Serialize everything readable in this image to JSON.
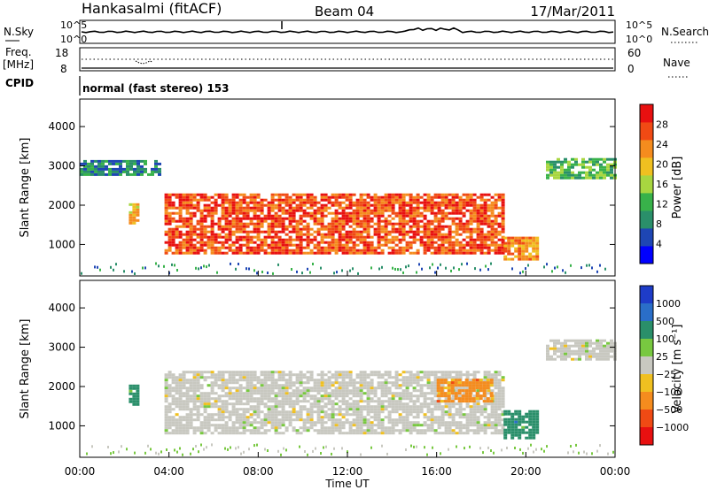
{
  "header": {
    "station": "Hankasalmi (fitACF)",
    "beam": "Beam 04",
    "date": "17/Mar/2011"
  },
  "top_panels": {
    "nsky_label": "N.Sky",
    "nsearch_label": "N.Search",
    "count_ticks": [
      "10^5",
      "10^0"
    ],
    "freq_label": "Freq.",
    "freq_unit": "[MHz]",
    "freq_ticks": [
      "18",
      "8"
    ],
    "nave_label": "Nave",
    "nave_ticks": [
      "60",
      "0"
    ],
    "cpid_label": "CPID",
    "cpid_text": "normal (fast stereo) 153"
  },
  "chart_data": [
    {
      "type": "heatmap",
      "panel": "power",
      "ylabel": "Slant Range [km]",
      "ylim": [
        200,
        4700
      ],
      "yticks": [
        1000,
        2000,
        3000,
        4000
      ],
      "xlabel": "Time UT",
      "xlim_hours": [
        0,
        24
      ],
      "xticks": [
        "00:00",
        "04:00",
        "08:00",
        "12:00",
        "16:00",
        "20:00",
        "00:00"
      ],
      "colorbar": {
        "label": "Power [dB]",
        "ticks": [
          "4",
          "8",
          "12",
          "16",
          "20",
          "24",
          "28"
        ],
        "colors": [
          "#0000ff",
          "#1e46b4",
          "#2a8f6a",
          "#38b24a",
          "#a8d640",
          "#f0c020",
          "#f58c1e",
          "#f04a14",
          "#e81010"
        ]
      },
      "features": [
        {
          "time_start_h": 0.0,
          "time_end_h": 3.6,
          "range_start_km": 2800,
          "range_end_km": 3150,
          "level_db": 8
        },
        {
          "time_start_h": 2.2,
          "time_end_h": 2.6,
          "range_start_km": 1550,
          "range_end_km": 2050,
          "level_db": 20
        },
        {
          "time_start_h": 3.8,
          "time_end_h": 19.0,
          "range_start_km": 800,
          "range_end_km": 2300,
          "level_db": 26
        },
        {
          "time_start_h": 19.0,
          "time_end_h": 20.5,
          "range_start_km": 600,
          "range_end_km": 1200,
          "level_db": 24
        },
        {
          "time_start_h": 20.9,
          "time_end_h": 24.0,
          "range_start_km": 2700,
          "range_end_km": 3200,
          "level_db": 10
        }
      ]
    },
    {
      "type": "heatmap",
      "panel": "velocity",
      "ylabel": "Slant Range [km]",
      "ylim": [
        200,
        4700
      ],
      "yticks": [
        1000,
        2000,
        3000,
        4000
      ],
      "xlabel": "Time UT",
      "xlim_hours": [
        0,
        24
      ],
      "xticks": [
        "00:00",
        "04:00",
        "08:00",
        "12:00",
        "16:00",
        "20:00",
        "00:00"
      ],
      "colorbar": {
        "label": "Velocity [m s⁻¹]",
        "ticks": [
          "1000",
          "500",
          "100",
          "25",
          "−25",
          "−100",
          "−500",
          "−1000"
        ],
        "colors": [
          "#1e3cc8",
          "#2a6ec8",
          "#2a8f6a",
          "#78c840",
          "#c8c8c0",
          "#f0c020",
          "#f58c1e",
          "#f04a14",
          "#e81010"
        ]
      },
      "features": [
        {
          "time_start_h": 3.8,
          "time_end_h": 19.0,
          "range_start_km": 800,
          "range_end_km": 2400,
          "velocity_ms": 0
        },
        {
          "time_start_h": 2.2,
          "time_end_h": 2.6,
          "range_start_km": 1550,
          "range_end_km": 2050,
          "velocity_ms": 200
        },
        {
          "time_start_h": 16.0,
          "time_end_h": 18.5,
          "range_start_km": 1600,
          "range_end_km": 2200,
          "velocity_ms": -150
        },
        {
          "time_start_h": 19.0,
          "time_end_h": 20.5,
          "range_start_km": 700,
          "range_end_km": 1400,
          "velocity_ms": 300
        },
        {
          "time_start_h": 20.9,
          "time_end_h": 24.0,
          "range_start_km": 2700,
          "range_end_km": 3200,
          "velocity_ms": 0
        }
      ]
    }
  ]
}
